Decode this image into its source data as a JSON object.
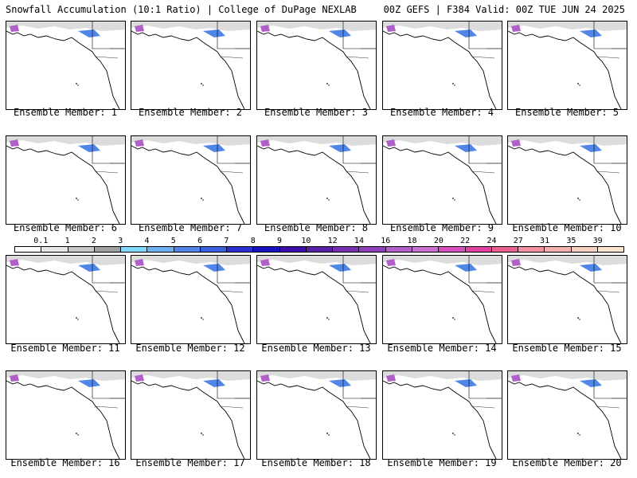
{
  "header": {
    "left": "Snowfall Accumulation (10:1 Ratio) | College of DuPage NEXLAB",
    "right": "00Z GEFS | F384 Valid: 00Z TUE JUN 24 2025"
  },
  "colorbar": {
    "ticks": [
      "0.1",
      "1",
      "2",
      "3",
      "4",
      "5",
      "6",
      "7",
      "8",
      "9",
      "10",
      "12",
      "14",
      "16",
      "18",
      "20",
      "22",
      "24",
      "27",
      "31",
      "35",
      "39"
    ],
    "colors": [
      "#ffffff",
      "#e6e6e6",
      "#c8c8c8",
      "#a0a0a0",
      "#7fd8ff",
      "#6fb0f0",
      "#4f86e8",
      "#3a5fe0",
      "#2a2fd0",
      "#1a10c0",
      "#3c10a8",
      "#5a20a8",
      "#7830b0",
      "#9040b8",
      "#b060c8",
      "#c870d0",
      "#d850c0",
      "#e040a0",
      "#e86090",
      "#f090a0",
      "#f5b0b0",
      "#f8d0c0",
      "#fbe4d0"
    ]
  },
  "panels": [
    {
      "label": "Ensemble Member: 1"
    },
    {
      "label": "Ensemble Member: 2"
    },
    {
      "label": "Ensemble Member: 3"
    },
    {
      "label": "Ensemble Member: 4"
    },
    {
      "label": "Ensemble Member: 5"
    },
    {
      "label": "Ensemble Member: 6"
    },
    {
      "label": "Ensemble Member: 7"
    },
    {
      "label": "Ensemble Member: 8"
    },
    {
      "label": "Ensemble Member: 9"
    },
    {
      "label": "Ensemble Member: 10"
    },
    {
      "label": "Ensemble Member: 11"
    },
    {
      "label": "Ensemble Member: 12"
    },
    {
      "label": "Ensemble Member: 13"
    },
    {
      "label": "Ensemble Member: 14"
    },
    {
      "label": "Ensemble Member: 15"
    },
    {
      "label": "Ensemble Member: 16"
    },
    {
      "label": "Ensemble Member: 17"
    },
    {
      "label": "Ensemble Member: 18"
    },
    {
      "label": "Ensemble Member: 19"
    },
    {
      "label": "Ensemble Member: 20"
    }
  ]
}
